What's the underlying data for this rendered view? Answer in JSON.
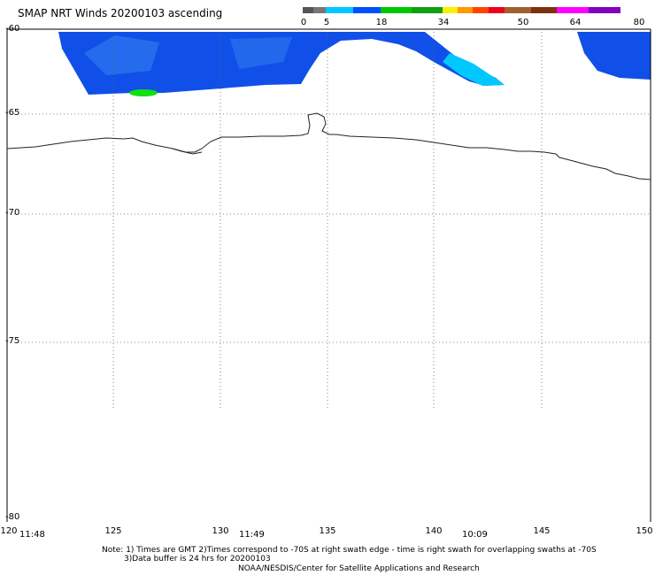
{
  "title": "SMAP NRT Winds 20200103 ascending",
  "colorbar": {
    "labels": [
      "0",
      "5",
      "18",
      "34",
      "50",
      "64",
      "80"
    ],
    "colors": [
      "#555555",
      "#777777",
      "#00c8ff",
      "#0050ff",
      "#00c800",
      "#10a010",
      "#ffee00",
      "#ff9900",
      "#ff4400",
      "#ee0020",
      "#a06030",
      "#803010",
      "#ff00ff",
      "#8000c0"
    ]
  },
  "lat_labels": [
    "-60",
    "-65",
    "-70",
    "-75",
    "-80"
  ],
  "lon_labels": [
    "120",
    "125",
    "130",
    "135",
    "140",
    "145",
    "150"
  ],
  "time_labels": [
    "11:48",
    "11:49",
    "10:09"
  ],
  "notes": {
    "line1": "Note: 1) Times are GMT 2)Times correspond to -70S at right swath edge - time is right swath for overlapping swaths at -70S",
    "line2": "3)Data buffer is 24 hrs for 20200103",
    "line3": "NOAA/NESDIS/Center for Satellite Applications and Research"
  },
  "map": {
    "lon_range": [
      120,
      150
    ],
    "lat_range": [
      -60,
      -80
    ],
    "grid": "dotted",
    "wind_colors": {
      "main": "#1050e8",
      "patch": "#2e78f0",
      "cyan": "#00c8ff",
      "green": "#10e010"
    }
  }
}
